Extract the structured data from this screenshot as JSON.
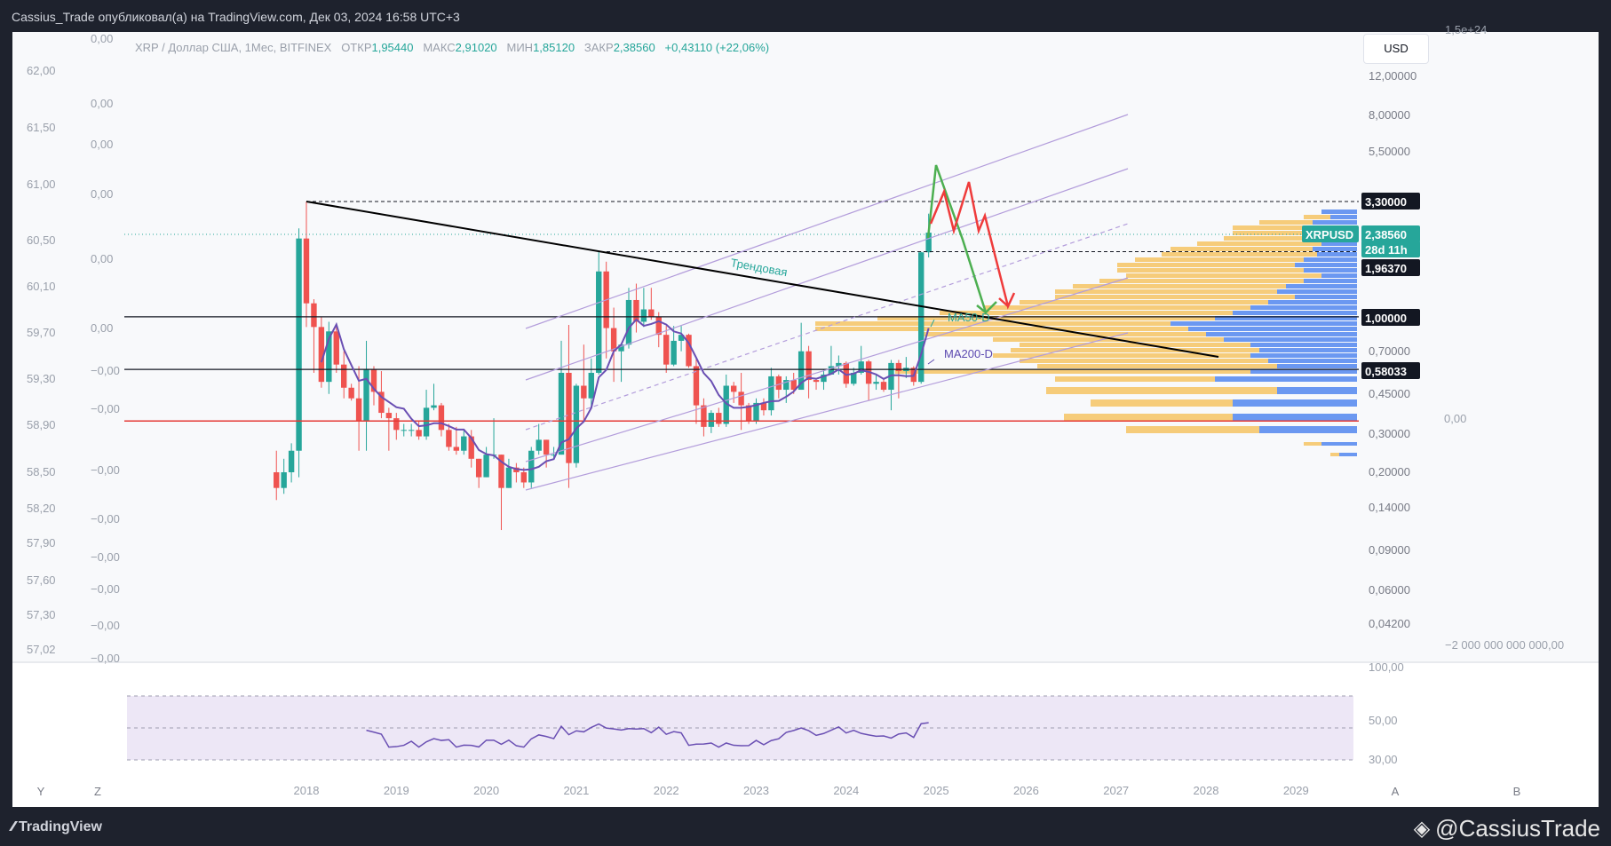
{
  "header": {
    "publisher_line": "Cassius_Trade опубликовал(а) на TradingView.com, Дек 03, 2024 16:58 UTC+3"
  },
  "legend": {
    "symbol_desc": "XRP / Доллар США, 1Мес, BITFINEX",
    "open_label": "ОТКР",
    "open": "1,95440",
    "high_label": "МАКС",
    "high": "2,91020",
    "low_label": "МИН",
    "low": "1,85120",
    "close_label": "ЗАКР",
    "close": "2,38560",
    "change": "+0,43110 (+22,06%)"
  },
  "currency_button": "USD",
  "footer": {
    "brand": "TradingView",
    "watermark": "@CassiusTrade"
  },
  "colors": {
    "up": "#26a69a",
    "down": "#ef5350",
    "ma": "#6a4fb3",
    "channel": "#b39ddb",
    "vp_buy": "#5b8def",
    "vp_sell": "#f5c76b",
    "support": "#e53935"
  },
  "chart_data": {
    "type": "candlestick",
    "symbol": "XRPUSD",
    "timeframe": "1M",
    "log_scale": true,
    "x_ticks": [
      "2018",
      "2019",
      "2020",
      "2021",
      "2022",
      "2023",
      "2024",
      "2025",
      "2026",
      "2027",
      "2028",
      "2029"
    ],
    "y_ticks_right": [
      "12,00000",
      "8,00000",
      "5,50000",
      "3,30000",
      "2,38560",
      "1,96370",
      "1,00000",
      "0,70000",
      "0,58033",
      "0,45000",
      "0,30000",
      "0,20000",
      "0,14000",
      "0,09000",
      "0,06000",
      "0,04200"
    ],
    "left_scale_1": [
      "62,00",
      "61,50",
      "61,00",
      "60,50",
      "60,10",
      "59,70",
      "59,30",
      "58,90",
      "58,50",
      "58,20",
      "57,90",
      "57,60",
      "57,30",
      "57,02"
    ],
    "left_scale_2": [
      "0,00",
      "0,00",
      "0,00",
      "0,00",
      "0,00",
      "0,00",
      "−0,00",
      "−0,00",
      "−0,00",
      "−0,00",
      "−0,00",
      "−0,00",
      "−0,00",
      "−0,00"
    ],
    "overlay_scale": [
      "1,5e+24",
      "0,00",
      "−2 000 000 000 000,00"
    ],
    "price_tags": [
      {
        "label": "3,30000",
        "style": "dark"
      },
      {
        "label": "XRPUSD",
        "style": "green"
      },
      {
        "label": "2,38560",
        "style": "green"
      },
      {
        "label": "28d 11h",
        "style": "green"
      },
      {
        "label": "1,96370",
        "style": "dark"
      },
      {
        "label": "1,00000",
        "style": "dark"
      },
      {
        "label": "0,58033",
        "style": "dark"
      }
    ],
    "horizontal_levels": [
      3.3,
      1.9637,
      1.0,
      0.58033,
      0.34
    ],
    "annotations": [
      "Трендовая",
      "MA50-D",
      "MA200-D"
    ],
    "rsi": {
      "ticks": [
        "100,00",
        "50,00",
        "30,00"
      ],
      "upper_band": 70,
      "lower_band": 30,
      "mid": 50
    },
    "bottom_buttons": [
      "Y",
      "Z",
      "A",
      "B"
    ],
    "candles": [
      {
        "t": "2017-09",
        "o": 0.2,
        "h": 0.25,
        "l": 0.15,
        "c": 0.17
      },
      {
        "t": "2017-10",
        "o": 0.17,
        "h": 0.23,
        "l": 0.16,
        "c": 0.2
      },
      {
        "t": "2017-11",
        "o": 0.2,
        "h": 0.27,
        "l": 0.18,
        "c": 0.25
      },
      {
        "t": "2017-12",
        "o": 0.25,
        "h": 2.5,
        "l": 0.19,
        "c": 2.25
      },
      {
        "t": "2018-01",
        "o": 2.25,
        "h": 3.3,
        "l": 0.9,
        "c": 1.15
      },
      {
        "t": "2018-02",
        "o": 1.15,
        "h": 1.2,
        "l": 0.56,
        "c": 0.9
      },
      {
        "t": "2018-03",
        "o": 0.9,
        "h": 1.0,
        "l": 0.48,
        "c": 0.51
      },
      {
        "t": "2018-04",
        "o": 0.51,
        "h": 0.95,
        "l": 0.45,
        "c": 0.86
      },
      {
        "t": "2018-05",
        "o": 0.86,
        "h": 0.9,
        "l": 0.56,
        "c": 0.61
      },
      {
        "t": "2018-06",
        "o": 0.61,
        "h": 0.7,
        "l": 0.43,
        "c": 0.48
      },
      {
        "t": "2018-07",
        "o": 0.48,
        "h": 0.5,
        "l": 0.42,
        "c": 0.43
      },
      {
        "t": "2018-08",
        "o": 0.43,
        "h": 0.6,
        "l": 0.25,
        "c": 0.34
      },
      {
        "t": "2018-09",
        "o": 0.34,
        "h": 0.78,
        "l": 0.25,
        "c": 0.58
      },
      {
        "t": "2018-10",
        "o": 0.58,
        "h": 0.6,
        "l": 0.4,
        "c": 0.46
      },
      {
        "t": "2018-11",
        "o": 0.46,
        "h": 0.57,
        "l": 0.35,
        "c": 0.37
      },
      {
        "t": "2018-12",
        "o": 0.37,
        "h": 0.39,
        "l": 0.25,
        "c": 0.35
      },
      {
        "t": "2019-01",
        "o": 0.35,
        "h": 0.37,
        "l": 0.28,
        "c": 0.31
      },
      {
        "t": "2019-02",
        "o": 0.31,
        "h": 0.33,
        "l": 0.29,
        "c": 0.31
      },
      {
        "t": "2019-03",
        "o": 0.31,
        "h": 0.33,
        "l": 0.29,
        "c": 0.31
      },
      {
        "t": "2019-04",
        "o": 0.31,
        "h": 0.34,
        "l": 0.28,
        "c": 0.29
      },
      {
        "t": "2019-05",
        "o": 0.29,
        "h": 0.47,
        "l": 0.28,
        "c": 0.39
      },
      {
        "t": "2019-06",
        "o": 0.39,
        "h": 0.5,
        "l": 0.38,
        "c": 0.4
      },
      {
        "t": "2019-07",
        "o": 0.4,
        "h": 0.41,
        "l": 0.29,
        "c": 0.31
      },
      {
        "t": "2019-08",
        "o": 0.31,
        "h": 0.33,
        "l": 0.25,
        "c": 0.26
      },
      {
        "t": "2019-09",
        "o": 0.26,
        "h": 0.32,
        "l": 0.24,
        "c": 0.25
      },
      {
        "t": "2019-10",
        "o": 0.25,
        "h": 0.31,
        "l": 0.24,
        "c": 0.29
      },
      {
        "t": "2019-11",
        "o": 0.29,
        "h": 0.31,
        "l": 0.21,
        "c": 0.23
      },
      {
        "t": "2019-12",
        "o": 0.23,
        "h": 0.23,
        "l": 0.17,
        "c": 0.19
      },
      {
        "t": "2020-01",
        "o": 0.19,
        "h": 0.26,
        "l": 0.19,
        "c": 0.24
      },
      {
        "t": "2020-02",
        "o": 0.24,
        "h": 0.35,
        "l": 0.23,
        "c": 0.24
      },
      {
        "t": "2020-03",
        "o": 0.24,
        "h": 0.24,
        "l": 0.11,
        "c": 0.17
      },
      {
        "t": "2020-04",
        "o": 0.17,
        "h": 0.23,
        "l": 0.17,
        "c": 0.21
      },
      {
        "t": "2020-05",
        "o": 0.21,
        "h": 0.22,
        "l": 0.18,
        "c": 0.2
      },
      {
        "t": "2020-06",
        "o": 0.2,
        "h": 0.21,
        "l": 0.17,
        "c": 0.18
      },
      {
        "t": "2020-07",
        "o": 0.18,
        "h": 0.26,
        "l": 0.17,
        "c": 0.25
      },
      {
        "t": "2020-08",
        "o": 0.25,
        "h": 0.33,
        "l": 0.24,
        "c": 0.28
      },
      {
        "t": "2020-09",
        "o": 0.28,
        "h": 0.28,
        "l": 0.21,
        "c": 0.24
      },
      {
        "t": "2020-10",
        "o": 0.24,
        "h": 0.26,
        "l": 0.23,
        "c": 0.24
      },
      {
        "t": "2020-11",
        "o": 0.24,
        "h": 0.78,
        "l": 0.24,
        "c": 0.56
      },
      {
        "t": "2020-12",
        "o": 0.56,
        "h": 0.92,
        "l": 0.17,
        "c": 0.22
      },
      {
        "t": "2021-01",
        "o": 0.22,
        "h": 0.5,
        "l": 0.21,
        "c": 0.49
      },
      {
        "t": "2021-02",
        "o": 0.49,
        "h": 0.75,
        "l": 0.34,
        "c": 0.43
      },
      {
        "t": "2021-03",
        "o": 0.43,
        "h": 0.65,
        "l": 0.39,
        "c": 0.56
      },
      {
        "t": "2021-04",
        "o": 0.56,
        "h": 1.96,
        "l": 0.55,
        "c": 1.6
      },
      {
        "t": "2021-05",
        "o": 1.6,
        "h": 1.77,
        "l": 0.65,
        "c": 0.89
      },
      {
        "t": "2021-06",
        "o": 0.89,
        "h": 1.1,
        "l": 0.51,
        "c": 0.7
      },
      {
        "t": "2021-07",
        "o": 0.7,
        "h": 0.75,
        "l": 0.51,
        "c": 0.75
      },
      {
        "t": "2021-08",
        "o": 0.75,
        "h": 1.35,
        "l": 0.72,
        "c": 1.19
      },
      {
        "t": "2021-09",
        "o": 1.19,
        "h": 1.41,
        "l": 0.85,
        "c": 0.95
      },
      {
        "t": "2021-10",
        "o": 0.95,
        "h": 1.35,
        "l": 0.9,
        "c": 1.08
      },
      {
        "t": "2021-11",
        "o": 1.08,
        "h": 1.35,
        "l": 0.97,
        "c": 1.0
      },
      {
        "t": "2021-12",
        "o": 1.0,
        "h": 1.05,
        "l": 0.73,
        "c": 0.83
      },
      {
        "t": "2022-01",
        "o": 0.83,
        "h": 0.91,
        "l": 0.56,
        "c": 0.61
      },
      {
        "t": "2022-02",
        "o": 0.61,
        "h": 0.91,
        "l": 0.6,
        "c": 0.78
      },
      {
        "t": "2022-03",
        "o": 0.78,
        "h": 0.91,
        "l": 0.7,
        "c": 0.83
      },
      {
        "t": "2022-04",
        "o": 0.83,
        "h": 0.84,
        "l": 0.59,
        "c": 0.6
      },
      {
        "t": "2022-05",
        "o": 0.6,
        "h": 0.66,
        "l": 0.33,
        "c": 0.4
      },
      {
        "t": "2022-06",
        "o": 0.4,
        "h": 0.43,
        "l": 0.29,
        "c": 0.32
      },
      {
        "t": "2022-07",
        "o": 0.32,
        "h": 0.38,
        "l": 0.3,
        "c": 0.37
      },
      {
        "t": "2022-08",
        "o": 0.37,
        "h": 0.39,
        "l": 0.32,
        "c": 0.33
      },
      {
        "t": "2022-09",
        "o": 0.33,
        "h": 0.55,
        "l": 0.32,
        "c": 0.49
      },
      {
        "t": "2022-10",
        "o": 0.49,
        "h": 0.51,
        "l": 0.41,
        "c": 0.46
      },
      {
        "t": "2022-11",
        "o": 0.46,
        "h": 0.56,
        "l": 0.31,
        "c": 0.4
      },
      {
        "t": "2022-12",
        "o": 0.4,
        "h": 0.41,
        "l": 0.33,
        "c": 0.34
      },
      {
        "t": "2023-01",
        "o": 0.34,
        "h": 0.43,
        "l": 0.33,
        "c": 0.41
      },
      {
        "t": "2023-02",
        "o": 0.41,
        "h": 0.43,
        "l": 0.36,
        "c": 0.38
      },
      {
        "t": "2023-03",
        "o": 0.38,
        "h": 0.59,
        "l": 0.36,
        "c": 0.54
      },
      {
        "t": "2023-04",
        "o": 0.54,
        "h": 0.55,
        "l": 0.43,
        "c": 0.47
      },
      {
        "t": "2023-05",
        "o": 0.47,
        "h": 0.54,
        "l": 0.41,
        "c": 0.52
      },
      {
        "t": "2023-06",
        "o": 0.52,
        "h": 0.56,
        "l": 0.45,
        "c": 0.47
      },
      {
        "t": "2023-07",
        "o": 0.47,
        "h": 0.94,
        "l": 0.47,
        "c": 0.7
      },
      {
        "t": "2023-08",
        "o": 0.7,
        "h": 0.74,
        "l": 0.43,
        "c": 0.52
      },
      {
        "t": "2023-09",
        "o": 0.52,
        "h": 0.53,
        "l": 0.47,
        "c": 0.51
      },
      {
        "t": "2023-10",
        "o": 0.51,
        "h": 0.58,
        "l": 0.47,
        "c": 0.55
      },
      {
        "t": "2023-11",
        "o": 0.55,
        "h": 0.74,
        "l": 0.55,
        "c": 0.6
      },
      {
        "t": "2023-12",
        "o": 0.6,
        "h": 0.67,
        "l": 0.55,
        "c": 0.62
      },
      {
        "t": "2024-01",
        "o": 0.62,
        "h": 0.63,
        "l": 0.48,
        "c": 0.5
      },
      {
        "t": "2024-02",
        "o": 0.5,
        "h": 0.59,
        "l": 0.49,
        "c": 0.56
      },
      {
        "t": "2024-03",
        "o": 0.56,
        "h": 0.74,
        "l": 0.55,
        "c": 0.63
      },
      {
        "t": "2024-04",
        "o": 0.63,
        "h": 0.64,
        "l": 0.42,
        "c": 0.5
      },
      {
        "t": "2024-05",
        "o": 0.5,
        "h": 0.55,
        "l": 0.47,
        "c": 0.51
      },
      {
        "t": "2024-06",
        "o": 0.51,
        "h": 0.53,
        "l": 0.46,
        "c": 0.47
      },
      {
        "t": "2024-07",
        "o": 0.47,
        "h": 0.64,
        "l": 0.38,
        "c": 0.62
      },
      {
        "t": "2024-08",
        "o": 0.62,
        "h": 0.64,
        "l": 0.43,
        "c": 0.57
      },
      {
        "t": "2024-09",
        "o": 0.57,
        "h": 0.66,
        "l": 0.53,
        "c": 0.59
      },
      {
        "t": "2024-10",
        "o": 0.59,
        "h": 0.6,
        "l": 0.49,
        "c": 0.51
      },
      {
        "t": "2024-11",
        "o": 0.51,
        "h": 1.96,
        "l": 0.5,
        "c": 1.95
      },
      {
        "t": "2024-12",
        "o": 1.95,
        "h": 2.91,
        "l": 1.85,
        "c": 2.39
      }
    ]
  }
}
